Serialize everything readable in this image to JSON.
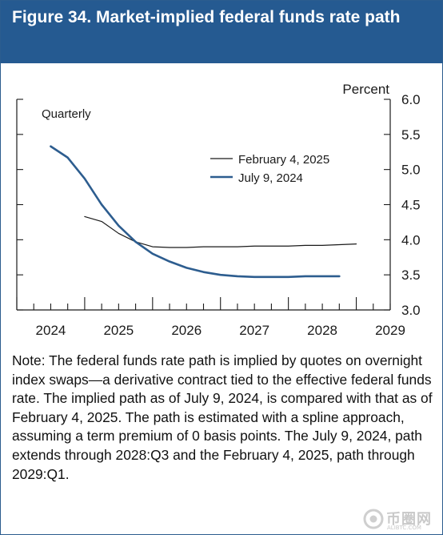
{
  "header": {
    "title": "Figure 34. Market-implied federal funds rate path"
  },
  "chart_data": {
    "type": "line",
    "unit_label": "Percent",
    "frequency_label": "Quarterly",
    "xlim": [
      2024.0,
      2029.5
    ],
    "ylim": [
      3.0,
      6.0
    ],
    "y_ticks": [
      "6.0",
      "5.5",
      "5.0",
      "4.5",
      "4.0",
      "3.5",
      "3.0"
    ],
    "x_tick_labels": [
      "2024",
      "2025",
      "2026",
      "2027",
      "2028",
      "2029"
    ],
    "grid": false,
    "legend_position": "upper-right",
    "series": [
      {
        "name": "February 4, 2025",
        "color": "#1a1a1a",
        "style": "thin",
        "points": [
          [
            2025.0,
            4.33
          ],
          [
            2025.25,
            4.26
          ],
          [
            2025.5,
            4.09
          ],
          [
            2025.75,
            3.97
          ],
          [
            2026.0,
            3.9
          ],
          [
            2026.25,
            3.89
          ],
          [
            2026.5,
            3.89
          ],
          [
            2026.75,
            3.9
          ],
          [
            2027.0,
            3.9
          ],
          [
            2027.25,
            3.9
          ],
          [
            2027.5,
            3.91
          ],
          [
            2027.75,
            3.91
          ],
          [
            2028.0,
            3.91
          ],
          [
            2028.25,
            3.92
          ],
          [
            2028.5,
            3.92
          ],
          [
            2028.75,
            3.93
          ],
          [
            2029.0,
            3.94
          ]
        ]
      },
      {
        "name": "July 9, 2024",
        "color": "#2d5d8f",
        "style": "thick",
        "points": [
          [
            2024.5,
            5.33
          ],
          [
            2024.75,
            5.17
          ],
          [
            2025.0,
            4.87
          ],
          [
            2025.25,
            4.5
          ],
          [
            2025.5,
            4.2
          ],
          [
            2025.75,
            3.97
          ],
          [
            2026.0,
            3.8
          ],
          [
            2026.25,
            3.69
          ],
          [
            2026.5,
            3.6
          ],
          [
            2026.75,
            3.54
          ],
          [
            2027.0,
            3.5
          ],
          [
            2027.25,
            3.48
          ],
          [
            2027.5,
            3.47
          ],
          [
            2027.75,
            3.47
          ],
          [
            2028.0,
            3.47
          ],
          [
            2028.25,
            3.48
          ],
          [
            2028.5,
            3.48
          ],
          [
            2028.75,
            3.48
          ]
        ]
      }
    ]
  },
  "note": "Note: The federal funds rate path is implied by quotes on overnight index swaps—a derivative contract tied to the effective federal funds rate. The implied path as of July 9, 2024, is compared with that as of February 4, 2025. The path is estimated with a spline approach, assuming a term premium of 0 basis points. The July 9, 2024, path extends through 2028:Q3 and the February 4, 2025, path through 2029:Q1.",
  "watermark": {
    "text": "币圈网",
    "sub": "ALIBTC.COM"
  }
}
